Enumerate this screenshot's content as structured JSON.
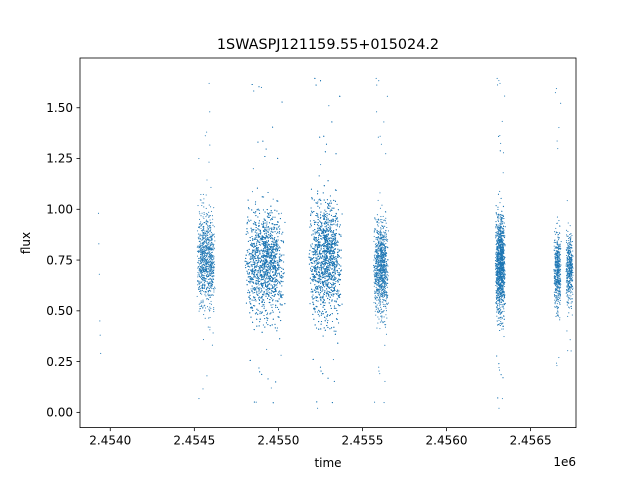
{
  "chart_data": {
    "type": "scatter",
    "title": "1SWASPJ121159.55+015024.2",
    "xlabel": "time",
    "ylabel": "flux",
    "offset_text": "1e6",
    "xlim": [
      2453820,
      2456770
    ],
    "ylim": [
      -0.075,
      1.745
    ],
    "x_ticks": [
      2454000,
      2454500,
      2455000,
      2455500,
      2456000,
      2456500
    ],
    "x_tick_labels": [
      "2.4540",
      "2.4545",
      "2.4550",
      "2.4555",
      "2.4560",
      "2.4565"
    ],
    "y_ticks": [
      0,
      0.25,
      0.5,
      0.75,
      1.0,
      1.25,
      1.5
    ],
    "y_tick_labels": [
      "0.00",
      "0.25",
      "0.50",
      "0.75",
      "1.00",
      "1.25",
      "1.50"
    ],
    "grid": false,
    "marker_color": "#1f77b4",
    "series": [
      {
        "x": [
          2453930,
          2453932,
          2453935,
          2453938,
          2453940,
          2453943,
          2454527,
          2454531,
          2454548,
          2454562,
          2454573,
          2454575,
          2454579,
          2454583,
          2454588,
          2454590,
          2454594,
          2454851,
          2454868,
          2454883,
          2454899,
          2454916,
          2454930,
          2454945,
          2454958,
          2454969,
          2454981,
          2454990,
          2455233,
          2455251,
          2455268,
          2455284,
          2455300,
          2455314,
          2455327,
          2455340,
          2455572,
          2455584,
          2455600,
          2455616,
          2455633,
          2456312,
          2456318,
          2456323,
          2456329,
          2456333,
          2456337,
          2456642,
          2456656,
          2456668,
          2456716,
          2456727,
          2456740,
          2456749
        ],
        "y": [
          0.98,
          0.83,
          0.68,
          0.45,
          0.38,
          0.29,
          1.25,
          0.95,
          0.6,
          0.5,
          1.38,
          0.18,
          0.85,
          0.42,
          1.62,
          0.78,
          0.66,
          1.2,
          0.05,
          0.92,
          1.6,
          0.52,
          0.31,
          0.74,
          0.12,
          1.05,
          0.68,
          0.88,
          0.02,
          1.22,
          0.83,
          0.46,
          1.51,
          0.58,
          0.26,
          0.97,
          0.05,
          1.48,
          0.72,
          1.02,
          0.33,
          0.02,
          1.62,
          0.95,
          0.41,
          0.75,
          1.18,
          0.58,
          0.93,
          0.27,
          0.75,
          0.49,
          0.88,
          0.62
        ]
      }
    ],
    "clusters": [
      {
        "x_center": 2454570,
        "x_halfwidth": 55,
        "flux_center": 0.75,
        "flux_spread": 0.16,
        "count": 900,
        "ymin": 0.05,
        "ymax": 1.52
      },
      {
        "x_center": 2454920,
        "x_halfwidth": 120,
        "flux_center": 0.74,
        "flux_spread": 0.18,
        "count": 3200,
        "ymin": 0.0,
        "ymax": 1.63
      },
      {
        "x_center": 2455280,
        "x_halfwidth": 100,
        "flux_center": 0.76,
        "flux_spread": 0.2,
        "count": 3200,
        "ymin": 0.0,
        "ymax": 1.66
      },
      {
        "x_center": 2455610,
        "x_halfwidth": 45,
        "flux_center": 0.72,
        "flux_spread": 0.16,
        "count": 1000,
        "ymin": 0.0,
        "ymax": 1.66
      },
      {
        "x_center": 2456320,
        "x_halfwidth": 30,
        "flux_center": 0.73,
        "flux_spread": 0.17,
        "count": 1600,
        "ymin": 0.02,
        "ymax": 1.66
      },
      {
        "x_center": 2456660,
        "x_halfwidth": 22,
        "flux_center": 0.7,
        "flux_spread": 0.13,
        "count": 500,
        "ymin": 0.05,
        "ymax": 1.62
      },
      {
        "x_center": 2456732,
        "x_halfwidth": 22,
        "flux_center": 0.71,
        "flux_spread": 0.11,
        "count": 450,
        "ymin": 0.28,
        "ymax": 1.05
      }
    ]
  }
}
